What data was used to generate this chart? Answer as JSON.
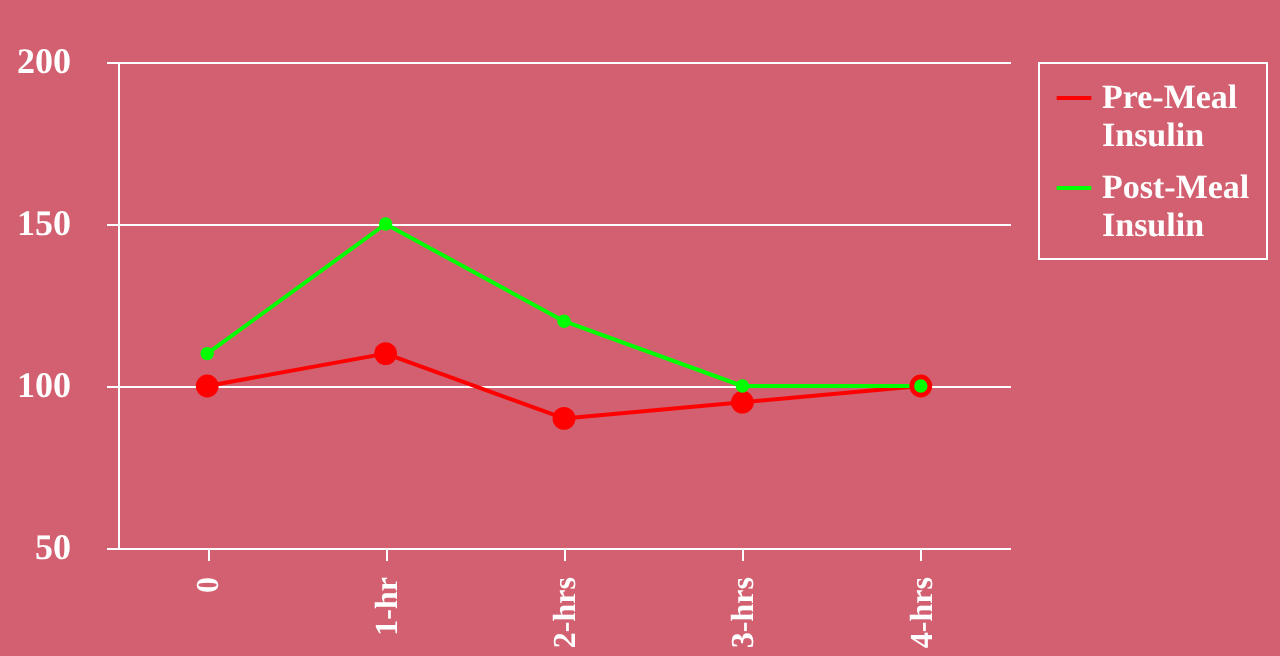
{
  "chart_data": {
    "type": "line",
    "categories": [
      "0",
      "1-hr",
      "2-hrs",
      "3-hrs",
      "4-hrs"
    ],
    "series": [
      {
        "name": "Pre-Meal Insulin",
        "color": "#ff0000",
        "values": [
          100,
          110,
          90,
          95,
          100
        ]
      },
      {
        "name": "Post-Meal Insulin",
        "color": "#00ff00",
        "values": [
          110,
          150,
          120,
          100,
          100
        ]
      }
    ],
    "ylim": [
      50,
      200
    ],
    "yticks": [
      50,
      100,
      150,
      200
    ],
    "grid": "y",
    "legend": "right",
    "marker": "circle",
    "line_style": "solid"
  }
}
